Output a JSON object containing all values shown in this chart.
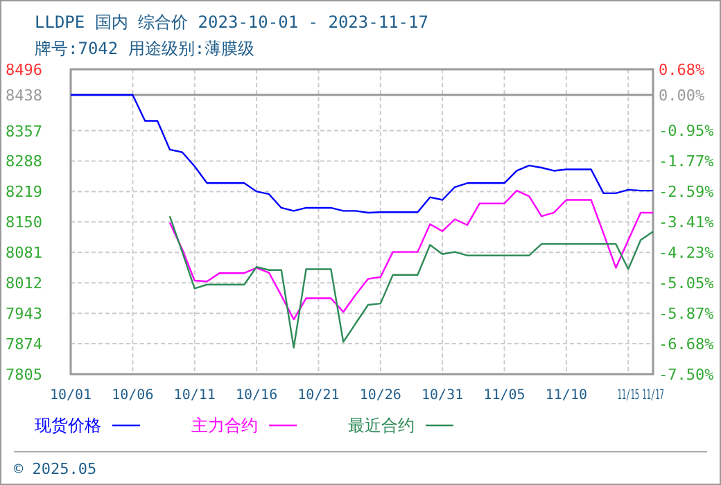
{
  "chart_data": {
    "type": "line",
    "title": "LLDPE 国内 综合价 2023-10-01 - 2023-11-17",
    "subtitle": "牌号:7042 用途级别:薄膜级",
    "x": [
      "2023-10-01",
      "2023-10-02",
      "2023-10-03",
      "2023-10-04",
      "2023-10-05",
      "2023-10-06",
      "2023-10-07",
      "2023-10-08",
      "2023-10-09",
      "2023-10-10",
      "2023-10-11",
      "2023-10-12",
      "2023-10-13",
      "2023-10-14",
      "2023-10-15",
      "2023-10-16",
      "2023-10-17",
      "2023-10-18",
      "2023-10-19",
      "2023-10-20",
      "2023-10-21",
      "2023-10-22",
      "2023-10-23",
      "2023-10-24",
      "2023-10-25",
      "2023-10-26",
      "2023-10-27",
      "2023-10-28",
      "2023-10-29",
      "2023-10-30",
      "2023-10-31",
      "2023-11-01",
      "2023-11-02",
      "2023-11-03",
      "2023-11-04",
      "2023-11-05",
      "2023-11-06",
      "2023-11-07",
      "2023-11-08",
      "2023-11-09",
      "2023-11-10",
      "2023-11-11",
      "2023-11-12",
      "2023-11-13",
      "2023-11-14",
      "2023-11-15",
      "2023-11-16",
      "2023-11-17"
    ],
    "series": [
      {
        "name": "现货价格",
        "color": "#0000ff",
        "values": [
          8438,
          8438,
          8438,
          8438,
          8438,
          8438,
          8379,
          8379,
          8314,
          8308,
          8276,
          8238,
          8238,
          8238,
          8238,
          8219,
          8213,
          8182,
          8175,
          8182,
          8182,
          8182,
          8175,
          8175,
          8171,
          8172,
          8172,
          8172,
          8172,
          8206,
          8200,
          8229,
          8238,
          8238,
          8238,
          8238,
          8266,
          8278,
          8273,
          8266,
          8269,
          8269,
          8269,
          8215,
          8215,
          8223,
          8221,
          8221
        ]
      },
      {
        "name": "主力合约",
        "color": "#ff00ff",
        "values": [
          null,
          null,
          null,
          null,
          null,
          null,
          null,
          null,
          8148,
          8088,
          8017,
          8015,
          8034,
          8034,
          8034,
          8046,
          8035,
          7983,
          7929,
          7977,
          7977,
          7977,
          7946,
          7985,
          8021,
          8025,
          8082,
          8082,
          8082,
          8145,
          8129,
          8156,
          8143,
          8192,
          8192,
          8192,
          8221,
          8208,
          8163,
          8171,
          8200,
          8200,
          8200,
          8124,
          8046,
          8109,
          8171,
          8171
        ]
      },
      {
        "name": "最近合约",
        "color": "#2e8b57",
        "values": [
          null,
          null,
          null,
          null,
          null,
          null,
          null,
          null,
          8163,
          8082,
          7999,
          8008,
          8008,
          8008,
          8008,
          8048,
          8041,
          8041,
          7865,
          8043,
          8043,
          8043,
          7878,
          7920,
          7962,
          7965,
          8030,
          8030,
          8030,
          8098,
          8077,
          8082,
          8074,
          8074,
          8074,
          8074,
          8074,
          8074,
          8100,
          8100,
          8100,
          8100,
          8100,
          8100,
          8100,
          8043,
          8109,
          8128
        ]
      }
    ],
    "xlim": [
      "2023-10-01",
      "2023-11-17"
    ],
    "xticks": [
      {
        "value": "2023-10-01",
        "label": "10/01"
      },
      {
        "value": "2023-10-06",
        "label": "10/06"
      },
      {
        "value": "2023-10-11",
        "label": "10/11"
      },
      {
        "value": "2023-10-16",
        "label": "10/16"
      },
      {
        "value": "2023-10-21",
        "label": "10/21"
      },
      {
        "value": "2023-10-26",
        "label": "10/26"
      },
      {
        "value": "2023-10-31",
        "label": "10/31"
      },
      {
        "value": "2023-11-05",
        "label": "11/05"
      },
      {
        "value": "2023-11-10",
        "label": "11/10"
      },
      {
        "value": "2023-11-15",
        "label": "11/15"
      },
      {
        "value": "2023-11-17",
        "label": "11/17"
      }
    ],
    "ylim": [
      7805,
      8496
    ],
    "yticks": [
      7805,
      7874,
      7943,
      8012,
      8081,
      8150,
      8219,
      8288,
      8357,
      8438,
      8496
    ],
    "y2lim": [
      -7.5,
      0.68
    ],
    "y2ticks": [
      {
        "value": -7.5,
        "label": "-7.50%"
      },
      {
        "value": -6.68,
        "label": "-6.68%"
      },
      {
        "value": -5.87,
        "label": "-5.87%"
      },
      {
        "value": -5.05,
        "label": "-5.05%"
      },
      {
        "value": -4.23,
        "label": "-4.23%"
      },
      {
        "value": -3.41,
        "label": "-3.41%"
      },
      {
        "value": -2.59,
        "label": "-2.59%"
      },
      {
        "value": -1.77,
        "label": "-1.77%"
      },
      {
        "value": -0.95,
        "label": "-0.95%"
      },
      {
        "value": 0,
        "label": "0.00%"
      },
      {
        "value": 0.68,
        "label": "0.68%"
      }
    ],
    "ref_lines": [
      {
        "axis": "y",
        "value": 8438,
        "color": "#999999"
      }
    ],
    "grid": true,
    "legend": "bottom",
    "annotations": [
      "© 2025.05"
    ]
  }
}
